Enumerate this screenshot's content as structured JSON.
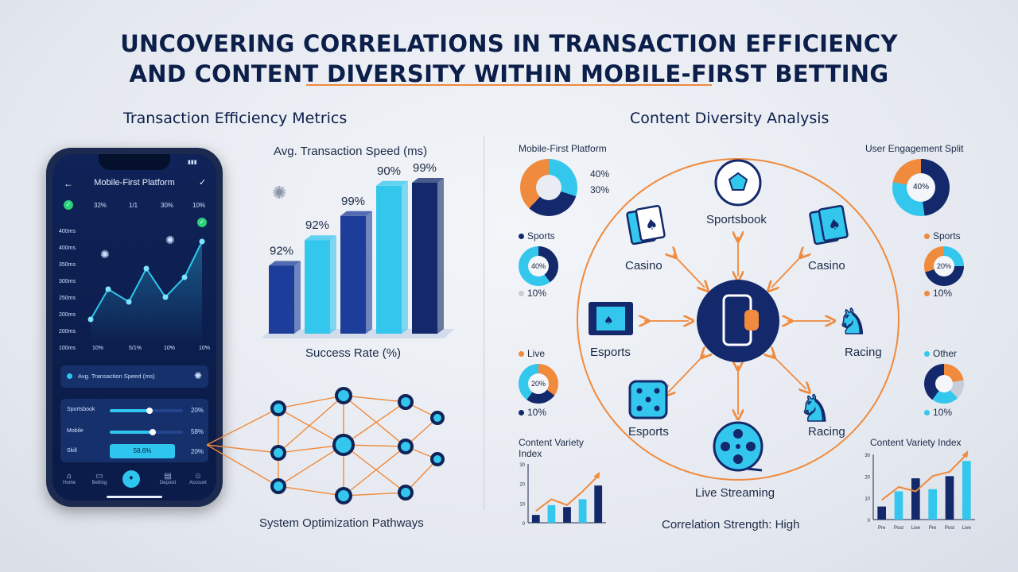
{
  "title_line1": "UNCOVERING CORRELATIONS IN TRANSACTION EFFICIENCY",
  "title_line2": "AND CONTENT DIVERSITY WITHIN MOBILE-FIRST BETTING",
  "left_heading": "Transaction Efficiency Metrics",
  "right_heading": "Content Diversity Analysis",
  "phone": {
    "header": "Mobile-First Platform",
    "stats": [
      "32%",
      "1/1",
      "30%",
      "10%"
    ],
    "y_ticks": [
      "400ms",
      "400ms",
      "350ms",
      "300ms",
      "250ms",
      "200ms",
      "200ms",
      "100ms"
    ],
    "x_ticks": [
      "10%",
      "5/1%",
      "10%",
      "10%"
    ],
    "line_values": [
      0.45,
      0.3,
      0.92,
      0.3,
      0.16
    ],
    "speed_label": "Avg. Transaction Speed (ms)",
    "rows": [
      {
        "label": "Sportsbook",
        "value": "20%",
        "fill": 0.55
      },
      {
        "label": "Mobile",
        "value": "58%",
        "fill": 0.6
      },
      {
        "label": "Skill",
        "pill": "58.6%",
        "value": "20%"
      }
    ],
    "nav": [
      "Home",
      "Betting",
      "Bet",
      "Deposit",
      "Account"
    ]
  },
  "bar_chart": {
    "title": "Avg. Transaction Speed (ms)",
    "xlabel": "Success Rate (%)",
    "labels": [
      "92%",
      "92%",
      "99%",
      "90%",
      "99%"
    ],
    "values": [
      0.45,
      0.62,
      0.78,
      0.98,
      1.0
    ],
    "colors": [
      "#1d3d9a",
      "#33c7ee",
      "#1d3d9a",
      "#33c7ee",
      "#13296b"
    ]
  },
  "network_label": "System Optimization Pathways",
  "hub": {
    "nodes": [
      {
        "name": "sportsbook",
        "label": "Sportsbook",
        "icon": "soccer-ball-icon"
      },
      {
        "name": "casino-left",
        "label": "Casino",
        "icon": "cards-icon"
      },
      {
        "name": "casino-right",
        "label": "Casino",
        "icon": "cards-icon"
      },
      {
        "name": "esports-left",
        "label": "Esports",
        "icon": "film-icon"
      },
      {
        "name": "racing-right",
        "label": "Racing",
        "icon": "horse-icon"
      },
      {
        "name": "esports-bottom",
        "label": "Esports",
        "icon": "dice-icon"
      },
      {
        "name": "racing-bottom",
        "label": "Racing",
        "icon": "horse-icon"
      },
      {
        "name": "live-streaming",
        "label": "Live Streaming",
        "icon": "film-reel-icon"
      }
    ],
    "center_icon": "mobile-phone-icon",
    "footer": "Correlation Strength: High"
  },
  "left_widgets": {
    "platform_title": "Mobile-First Platform",
    "platform_donut": {
      "labels": [
        "40%",
        "30%"
      ]
    },
    "sports": {
      "legend": "Sports",
      "center": "40%",
      "bottom": "10%"
    },
    "live": {
      "legend": "Live",
      "center": "20%",
      "bottom": "10%"
    },
    "variety_title": "Content Variety Index",
    "variety_ticks": [
      "30",
      "20",
      "10",
      "0"
    ],
    "variety_values": [
      4,
      9,
      8,
      12,
      19
    ],
    "variety_line": [
      6,
      12,
      9,
      16,
      24
    ]
  },
  "right_widgets": {
    "engagement_title": "User Engagement Split",
    "engagement_center": "40%",
    "sports": {
      "legend": "Sports",
      "center": "20%",
      "bottom": "10%"
    },
    "other": {
      "legend": "Other",
      "bottom": "10%"
    },
    "variety_title": "Content Variety Index",
    "variety_ticks": [
      "30",
      "20",
      "10",
      "0"
    ],
    "variety_x": [
      "Pre",
      "Post",
      "Live",
      "Pre",
      "Post",
      "Live"
    ],
    "variety_values": [
      6,
      13,
      19,
      14,
      20,
      27
    ],
    "variety_line": [
      9,
      15,
      13,
      20,
      22,
      30
    ]
  },
  "colors": {
    "navy": "#13296b",
    "cyan": "#33c7ee",
    "orange": "#f08a3c"
  }
}
